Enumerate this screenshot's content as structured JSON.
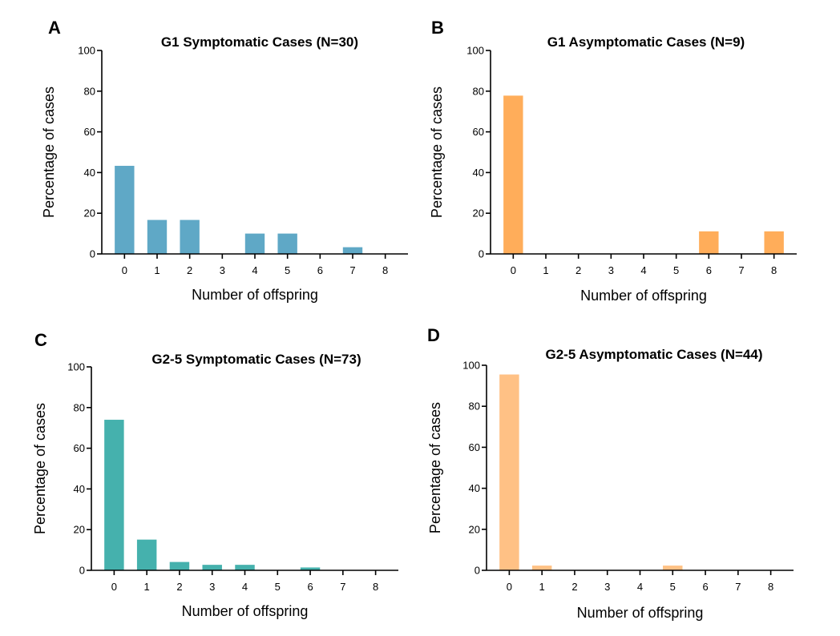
{
  "chart_data": [
    {
      "type": "bar",
      "panel": "A",
      "title": "G1 Symptomatic Cases (N=30)",
      "xlabel": "Number of offspring",
      "ylabel": "Percentage of cases",
      "categories": [
        "0",
        "1",
        "2",
        "3",
        "4",
        "5",
        "6",
        "7",
        "8"
      ],
      "values": [
        43.3,
        16.7,
        16.7,
        0,
        10.0,
        10.0,
        0,
        3.3,
        0
      ],
      "ylim": [
        0,
        100
      ],
      "yticks": [
        "0",
        "20",
        "40",
        "60",
        "80",
        "100"
      ],
      "color": "#5fa8c6",
      "grid": false
    },
    {
      "type": "bar",
      "panel": "B",
      "title": "G1 Asymptomatic Cases (N=9)",
      "xlabel": "Number of offspring",
      "ylabel": "Percentage of cases",
      "categories": [
        "0",
        "1",
        "2",
        "3",
        "4",
        "5",
        "6",
        "7",
        "8"
      ],
      "values": [
        77.8,
        0,
        0,
        0,
        0,
        0,
        11.1,
        0,
        11.1
      ],
      "ylim": [
        0,
        100
      ],
      "yticks": [
        "0",
        "20",
        "40",
        "60",
        "80",
        "100"
      ],
      "color": "#ffad5a",
      "grid": false
    },
    {
      "type": "bar",
      "panel": "C",
      "title": "G2-5 Symptomatic Cases (N=73)",
      "xlabel": "Number of offspring",
      "ylabel": "Percentage of cases",
      "categories": [
        "0",
        "1",
        "2",
        "3",
        "4",
        "5",
        "6",
        "7",
        "8"
      ],
      "values": [
        74.0,
        15.1,
        4.1,
        2.7,
        2.7,
        0,
        1.4,
        0,
        0
      ],
      "ylim": [
        0,
        100
      ],
      "yticks": [
        "0",
        "20",
        "40",
        "60",
        "80",
        "100"
      ],
      "color": "#45b1ad",
      "grid": false
    },
    {
      "type": "bar",
      "panel": "D",
      "title": "G2-5 Asymptomatic Cases (N=44)",
      "xlabel": "Number of offspring",
      "ylabel": "Percentage of cases",
      "categories": [
        "0",
        "1",
        "2",
        "3",
        "4",
        "5",
        "6",
        "7",
        "8"
      ],
      "values": [
        95.5,
        2.3,
        0,
        0,
        0,
        2.3,
        0,
        0,
        0
      ],
      "ylim": [
        0,
        100
      ],
      "yticks": [
        "0",
        "20",
        "40",
        "60",
        "80",
        "100"
      ],
      "color": "#ffc185",
      "grid": false
    }
  ]
}
